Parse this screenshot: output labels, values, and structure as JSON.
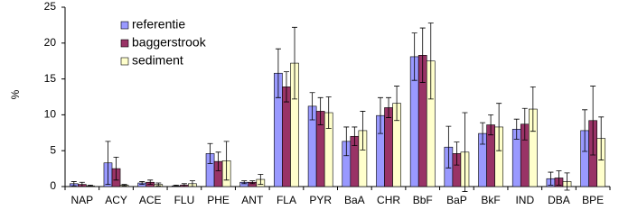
{
  "chart_data": {
    "type": "bar",
    "y_label": "%",
    "categories": [
      "NAP",
      "ACY",
      "ACE",
      "FLU",
      "PHE",
      "ANT",
      "FLA",
      "PYR",
      "BaA",
      "CHR",
      "BbF",
      "BaP",
      "BkF",
      "IND",
      "DBA",
      "BPE"
    ],
    "series": [
      {
        "name": "referentie",
        "color": "#9999ff",
        "values": [
          0.4,
          3.3,
          0.5,
          0.1,
          4.6,
          0.6,
          15.8,
          11.2,
          6.3,
          9.9,
          18.1,
          5.5,
          7.4,
          8.0,
          1.1,
          7.8
        ],
        "errors": [
          0.3,
          3.0,
          0.2,
          0.1,
          1.4,
          0.2,
          3.4,
          1.9,
          2.0,
          2.5,
          3.3,
          2.9,
          1.5,
          1.4,
          0.9,
          2.9
        ]
      },
      {
        "name": "baggerstrook",
        "color": "#993366",
        "values": [
          0.3,
          2.5,
          0.6,
          0.2,
          3.5,
          0.6,
          13.9,
          10.5,
          7.0,
          11.0,
          18.3,
          4.6,
          8.6,
          8.7,
          1.2,
          9.2
        ],
        "errors": [
          0.3,
          1.6,
          0.3,
          0.2,
          1.3,
          0.2,
          2.1,
          1.9,
          1.3,
          1.4,
          3.8,
          1.6,
          1.4,
          2.2,
          1.0,
          4.8
        ]
      },
      {
        "name": "sediment",
        "color": "#ffffcc",
        "values": [
          0.1,
          0.2,
          0.3,
          0.4,
          3.6,
          1.0,
          17.2,
          10.3,
          7.8,
          11.6,
          17.5,
          4.8,
          8.3,
          10.8,
          0.7,
          6.7
        ],
        "errors": [
          0.1,
          0.1,
          0.2,
          0.4,
          2.7,
          0.7,
          5.0,
          2.2,
          2.7,
          2.4,
          5.3,
          5.5,
          3.3,
          3.1,
          1.2,
          3.0
        ]
      }
    ],
    "ylim": [
      0,
      25
    ],
    "yticks": [
      0,
      5,
      10,
      15,
      20,
      25
    ],
    "grid": false,
    "legend": "top-left"
  }
}
